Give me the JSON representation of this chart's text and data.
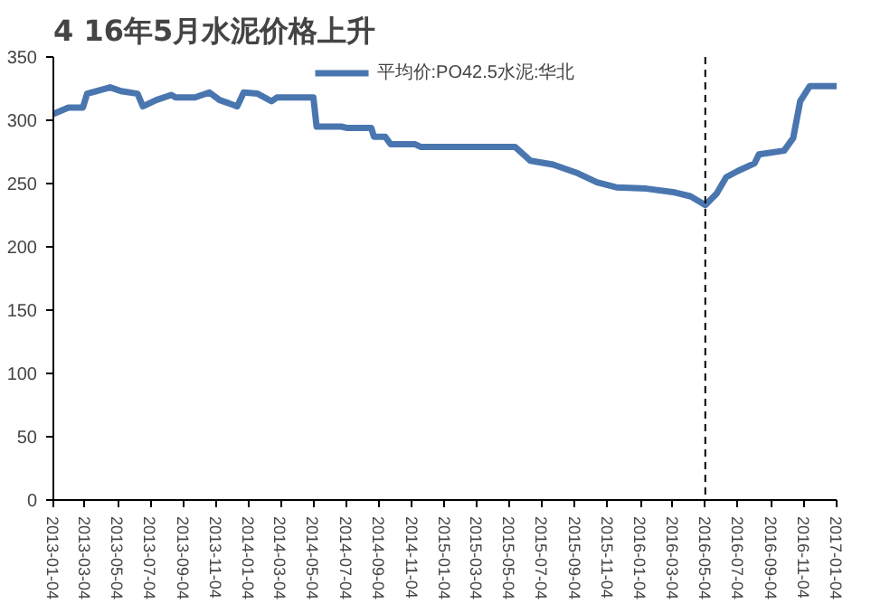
{
  "chart_data": {
    "type": "line",
    "title": "4 16年5月水泥价格上升",
    "x": [
      "2013-01-04",
      "2013-02-01",
      "2013-02-28",
      "2013-03-08",
      "2013-04-20",
      "2013-05-10",
      "2013-06-10",
      "2013-06-20",
      "2013-07-15",
      "2013-08-12",
      "2013-08-20",
      "2013-09-25",
      "2013-10-22",
      "2013-11-10",
      "2013-12-13",
      "2013-12-25",
      "2014-01-20",
      "2014-02-15",
      "2014-02-25",
      "2014-05-04",
      "2014-05-10",
      "2014-06-25",
      "2014-07-05",
      "2014-08-20",
      "2014-08-25",
      "2014-09-15",
      "2014-09-25",
      "2014-11-10",
      "2014-11-20",
      "2015-01-04",
      "2015-05-15",
      "2015-06-13",
      "2015-07-25",
      "2015-09-10",
      "2015-10-15",
      "2015-11-20",
      "2016-01-15",
      "2016-03-08",
      "2016-04-06",
      "2016-05-04",
      "2016-05-25",
      "2016-06-12",
      "2016-07-04",
      "2016-08-04",
      "2016-08-12",
      "2016-09-28",
      "2016-10-15",
      "2016-10-28",
      "2016-11-15",
      "2017-01-04"
    ],
    "series": [
      {
        "name": "平均价:PO42.5水泥:华北",
        "color": "#4a76b0",
        "values": [
          305,
          310,
          310,
          321,
          326,
          323,
          321,
          311,
          316,
          320,
          318,
          318,
          322,
          316,
          311,
          322,
          321,
          315,
          318,
          318,
          295,
          295,
          294,
          294,
          287,
          287,
          281,
          281,
          279,
          279,
          279,
          268,
          265,
          258,
          251,
          247,
          246,
          243,
          240,
          233,
          242,
          255,
          260,
          266,
          273,
          276,
          286,
          315,
          327,
          327
        ]
      }
    ],
    "xlim": [
      "2013-01-04",
      "2017-01-04"
    ],
    "xticks": [
      {
        "value": "2013-01-04",
        "label": "2013-01-04"
      },
      {
        "value": "2013-03-04",
        "label": "2013-03-04"
      },
      {
        "value": "2013-05-04",
        "label": "2013-05-04"
      },
      {
        "value": "2013-07-04",
        "label": "2013-07-04"
      },
      {
        "value": "2013-09-04",
        "label": "2013-09-04"
      },
      {
        "value": "2013-11-04",
        "label": "2013-11-04"
      },
      {
        "value": "2014-01-04",
        "label": "2014-01-04"
      },
      {
        "value": "2014-03-04",
        "label": "2014-03-04"
      },
      {
        "value": "2014-05-04",
        "label": "2014-05-04"
      },
      {
        "value": "2014-07-04",
        "label": "2014-07-04"
      },
      {
        "value": "2014-09-04",
        "label": "2014-09-04"
      },
      {
        "value": "2014-11-04",
        "label": "2014-11-04"
      },
      {
        "value": "2015-01-04",
        "label": "2015-01-04"
      },
      {
        "value": "2015-03-04",
        "label": "2015-03-04"
      },
      {
        "value": "2015-05-04",
        "label": "2015-05-04"
      },
      {
        "value": "2015-07-04",
        "label": "2015-07-04"
      },
      {
        "value": "2015-09-04",
        "label": "2015-09-04"
      },
      {
        "value": "2015-11-04",
        "label": "2015-11-04"
      },
      {
        "value": "2016-01-04",
        "label": "2016-01-04"
      },
      {
        "value": "2016-03-04",
        "label": "2016-03-04"
      },
      {
        "value": "2016-05-04",
        "label": "2016-05-04"
      },
      {
        "value": "2016-07-04",
        "label": "2016-07-04"
      },
      {
        "value": "2016-09-04",
        "label": "2016-09-04"
      },
      {
        "value": "2016-11-04",
        "label": "2016-11-04"
      },
      {
        "value": "2017-01-04",
        "label": "2017-01-04"
      }
    ],
    "ylim": [
      0,
      350
    ],
    "yticks": [
      0,
      50,
      100,
      150,
      200,
      250,
      300,
      350
    ],
    "ref_lines": [
      {
        "axis": "x",
        "value": "2016-05-04",
        "color": "#000000",
        "line_style": "dashed"
      }
    ],
    "legend": "top",
    "grid": false,
    "line_style": "solid"
  }
}
